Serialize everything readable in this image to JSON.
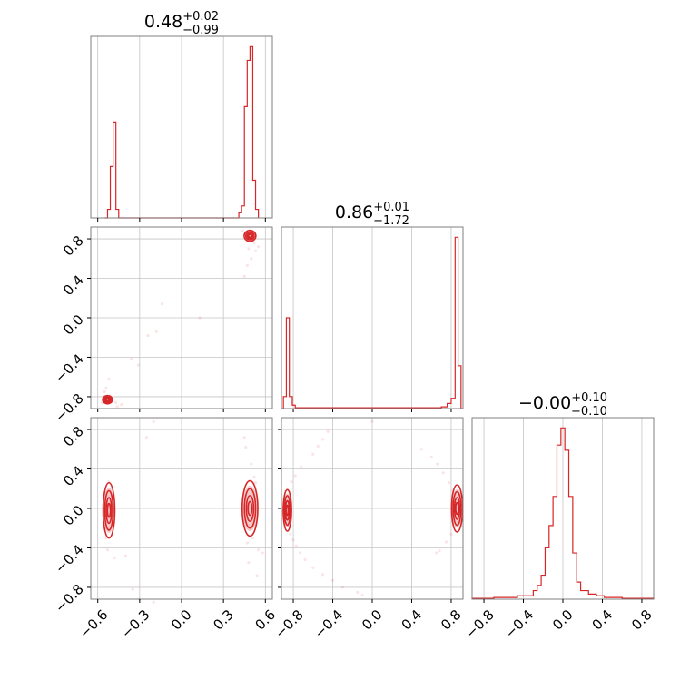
{
  "chart_data": [
    {
      "type": "histogram",
      "panel": "p0",
      "row": 0,
      "col": 0,
      "title": {
        "median": "0.48",
        "plus": "+0.02",
        "minus": "−0.99"
      },
      "xlim": [
        -0.65,
        0.65
      ],
      "bins": [
        {
          "x0": -0.55,
          "x1": -0.53,
          "y": 0.0
        },
        {
          "x0": -0.53,
          "x1": -0.51,
          "y": 0.05
        },
        {
          "x0": -0.51,
          "x1": -0.49,
          "y": 0.3
        },
        {
          "x0": -0.49,
          "x1": -0.47,
          "y": 0.56
        },
        {
          "x0": -0.47,
          "x1": -0.45,
          "y": 0.05
        },
        {
          "x0": -0.45,
          "x1": 0.41,
          "y": 0.0
        },
        {
          "x0": 0.41,
          "x1": 0.43,
          "y": 0.03
        },
        {
          "x0": 0.43,
          "x1": 0.45,
          "y": 0.07
        },
        {
          "x0": 0.45,
          "x1": 0.47,
          "y": 0.65
        },
        {
          "x0": 0.47,
          "x1": 0.49,
          "y": 0.92
        },
        {
          "x0": 0.49,
          "x1": 0.51,
          "y": 1.0
        },
        {
          "x0": 0.51,
          "x1": 0.53,
          "y": 0.22
        },
        {
          "x0": 0.53,
          "x1": 0.55,
          "y": 0.05
        }
      ]
    },
    {
      "type": "scatter-contour",
      "panel": "p10",
      "row": 1,
      "col": 0,
      "xlim": [
        -0.65,
        0.65
      ],
      "ylim": [
        -0.92,
        0.92
      ],
      "clusters": [
        {
          "cx": -0.53,
          "cy": -0.83,
          "rx": 0.025,
          "ry": 0.03
        },
        {
          "cx": 0.49,
          "cy": 0.83,
          "rx": 0.03,
          "ry": 0.04
        }
      ],
      "points": [
        [
          -0.54,
          -0.71
        ],
        [
          -0.52,
          -0.62
        ],
        [
          -0.55,
          -0.75
        ],
        [
          -0.51,
          -0.79
        ],
        [
          -0.57,
          -0.86
        ],
        [
          -0.47,
          -0.86
        ],
        [
          -0.43,
          -0.88
        ],
        [
          -0.46,
          -0.9
        ],
        [
          -0.36,
          -0.42
        ],
        [
          -0.31,
          -0.48
        ],
        [
          -0.24,
          -0.18
        ],
        [
          -0.18,
          -0.14
        ],
        [
          -0.14,
          0.14
        ],
        [
          0.13,
          0.0
        ],
        [
          0.45,
          0.42
        ],
        [
          0.47,
          0.53
        ],
        [
          0.5,
          0.6
        ],
        [
          0.53,
          0.68
        ],
        [
          0.55,
          0.72
        ],
        [
          0.46,
          0.86
        ],
        [
          0.44,
          0.88
        ],
        [
          0.52,
          0.76
        ],
        [
          0.48,
          0.7
        ]
      ]
    },
    {
      "type": "histogram",
      "panel": "p11",
      "row": 1,
      "col": 1,
      "title": {
        "median": "0.86",
        "plus": "+0.01",
        "minus": "−1.72"
      },
      "xlim": [
        -0.92,
        0.92
      ],
      "bins": [
        {
          "x0": -0.9,
          "x1": -0.87,
          "y": 0.07
        },
        {
          "x0": -0.87,
          "x1": -0.84,
          "y": 0.53
        },
        {
          "x0": -0.84,
          "x1": -0.81,
          "y": 0.07
        },
        {
          "x0": -0.81,
          "x1": -0.78,
          "y": 0.02
        },
        {
          "x0": -0.78,
          "x1": 0.7,
          "y": 0.005
        },
        {
          "x0": 0.7,
          "x1": 0.76,
          "y": 0.01
        },
        {
          "x0": 0.76,
          "x1": 0.8,
          "y": 0.03
        },
        {
          "x0": 0.8,
          "x1": 0.84,
          "y": 0.06
        },
        {
          "x0": 0.84,
          "x1": 0.87,
          "y": 1.0
        },
        {
          "x0": 0.87,
          "x1": 0.9,
          "y": 0.25
        }
      ]
    },
    {
      "type": "scatter-contour",
      "panel": "p20",
      "row": 2,
      "col": 0,
      "xlim": [
        -0.65,
        0.65
      ],
      "ylim": [
        -0.92,
        0.92
      ],
      "clusters": [
        {
          "cx": -0.52,
          "cy": -0.02,
          "rx": 0.03,
          "ry": 0.2
        },
        {
          "cx": 0.49,
          "cy": 0.0,
          "rx": 0.04,
          "ry": 0.2
        }
      ],
      "points": [
        [
          -0.54,
          -0.3
        ],
        [
          -0.53,
          -0.42
        ],
        [
          -0.55,
          -0.2
        ],
        [
          -0.5,
          0.2
        ],
        [
          -0.52,
          0.27
        ],
        [
          -0.48,
          -0.5
        ],
        [
          -0.4,
          -0.48
        ],
        [
          -0.35,
          -0.82
        ],
        [
          -0.3,
          -0.92
        ],
        [
          -0.2,
          -0.95
        ],
        [
          -0.25,
          0.72
        ],
        [
          -0.2,
          0.88
        ],
        [
          0.45,
          0.72
        ],
        [
          0.46,
          0.62
        ],
        [
          0.5,
          0.45
        ],
        [
          0.52,
          0.32
        ],
        [
          0.53,
          0.26
        ],
        [
          0.51,
          -0.3
        ],
        [
          0.47,
          -0.35
        ],
        [
          0.55,
          -0.42
        ],
        [
          0.54,
          -0.68
        ],
        [
          0.58,
          -0.45
        ],
        [
          0.48,
          -0.55
        ]
      ]
    },
    {
      "type": "scatter-contour",
      "panel": "p21",
      "row": 2,
      "col": 1,
      "xlim": [
        -0.92,
        0.92
      ],
      "ylim": [
        -0.92,
        0.92
      ],
      "clusters": [
        {
          "cx": -0.86,
          "cy": -0.02,
          "rx": 0.03,
          "ry": 0.15
        },
        {
          "cx": 0.86,
          "cy": 0.0,
          "rx": 0.04,
          "ry": 0.17
        }
      ],
      "points": [
        [
          -0.85,
          -0.18
        ],
        [
          -0.83,
          -0.26
        ],
        [
          -0.8,
          -0.32
        ],
        [
          -0.77,
          -0.38
        ],
        [
          -0.73,
          -0.45
        ],
        [
          -0.68,
          -0.52
        ],
        [
          -0.6,
          -0.6
        ],
        [
          -0.5,
          -0.67
        ],
        [
          -0.4,
          -0.73
        ],
        [
          -0.3,
          -0.8
        ],
        [
          -0.15,
          -0.85
        ],
        [
          -0.1,
          -0.88
        ],
        [
          -0.86,
          0.2
        ],
        [
          -0.82,
          0.27
        ],
        [
          -0.78,
          0.33
        ],
        [
          -0.72,
          0.42
        ],
        [
          -0.6,
          0.55
        ],
        [
          -0.55,
          0.63
        ],
        [
          -0.5,
          0.7
        ],
        [
          -0.45,
          0.78
        ],
        [
          0.5,
          0.6
        ],
        [
          0.6,
          0.52
        ],
        [
          0.66,
          0.45
        ],
        [
          0.72,
          0.36
        ],
        [
          0.78,
          0.26
        ],
        [
          0.82,
          0.18
        ],
        [
          0.85,
          -0.18
        ],
        [
          0.8,
          -0.26
        ],
        [
          0.75,
          -0.34
        ],
        [
          0.68,
          -0.43
        ],
        [
          0.65,
          -0.45
        ],
        [
          0.0,
          0.88
        ]
      ]
    },
    {
      "type": "histogram",
      "panel": "p22",
      "row": 2,
      "col": 2,
      "title": {
        "median": "−0.00",
        "plus": "+0.10",
        "minus": "−0.10"
      },
      "xlim": [
        -0.92,
        0.92
      ],
      "bins": [
        {
          "x0": -0.92,
          "x1": -0.7,
          "y": 0.005
        },
        {
          "x0": -0.7,
          "x1": -0.46,
          "y": 0.01
        },
        {
          "x0": -0.46,
          "x1": -0.3,
          "y": 0.02
        },
        {
          "x0": -0.3,
          "x1": -0.26,
          "y": 0.05
        },
        {
          "x0": -0.26,
          "x1": -0.22,
          "y": 0.08
        },
        {
          "x0": -0.22,
          "x1": -0.18,
          "y": 0.14
        },
        {
          "x0": -0.18,
          "x1": -0.14,
          "y": 0.3
        },
        {
          "x0": -0.14,
          "x1": -0.1,
          "y": 0.43
        },
        {
          "x0": -0.1,
          "x1": -0.06,
          "y": 0.6
        },
        {
          "x0": -0.06,
          "x1": -0.02,
          "y": 0.9
        },
        {
          "x0": -0.02,
          "x1": 0.02,
          "y": 1.0
        },
        {
          "x0": 0.02,
          "x1": 0.06,
          "y": 0.87
        },
        {
          "x0": 0.06,
          "x1": 0.1,
          "y": 0.6
        },
        {
          "x0": 0.1,
          "x1": 0.14,
          "y": 0.27
        },
        {
          "x0": 0.14,
          "x1": 0.18,
          "y": 0.1
        },
        {
          "x0": 0.18,
          "x1": 0.26,
          "y": 0.05
        },
        {
          "x0": 0.26,
          "x1": 0.34,
          "y": 0.03
        },
        {
          "x0": 0.34,
          "x1": 0.42,
          "y": 0.02
        },
        {
          "x0": 0.42,
          "x1": 0.6,
          "y": 0.01
        },
        {
          "x0": 0.6,
          "x1": 0.92,
          "y": 0.005
        }
      ]
    }
  ],
  "axes": {
    "x_col0": {
      "ticks": [
        -0.6,
        -0.3,
        0.0,
        0.3,
        0.6
      ],
      "labels": [
        "−0.6",
        "−0.3",
        "0.0",
        "0.3",
        "0.6"
      ]
    },
    "x_col1": {
      "ticks": [
        -0.8,
        -0.4,
        0.0,
        0.4,
        0.8
      ],
      "labels": [
        "−0.8",
        "−0.4",
        "0.0",
        "0.4",
        "0.8"
      ]
    },
    "x_col2": {
      "ticks": [
        -0.8,
        -0.4,
        0.0,
        0.4,
        0.8
      ],
      "labels": [
        "−0.8",
        "−0.4",
        "0.0",
        "0.4",
        "0.8"
      ]
    },
    "y_row1": {
      "ticks": [
        -0.8,
        -0.4,
        0.0,
        0.4,
        0.8
      ],
      "labels": [
        "−0.8",
        "−0.4",
        "0.0",
        "0.4",
        "0.8"
      ]
    },
    "y_row2": {
      "ticks": [
        -0.8,
        -0.4,
        0.0,
        0.4,
        0.8
      ],
      "labels": [
        "−0.8",
        "−0.4",
        "0.0",
        "0.4",
        "0.8"
      ]
    }
  },
  "colors": {
    "series": "#d62728",
    "grid": "#c4c4c4",
    "frame": "#7f7f7f"
  }
}
